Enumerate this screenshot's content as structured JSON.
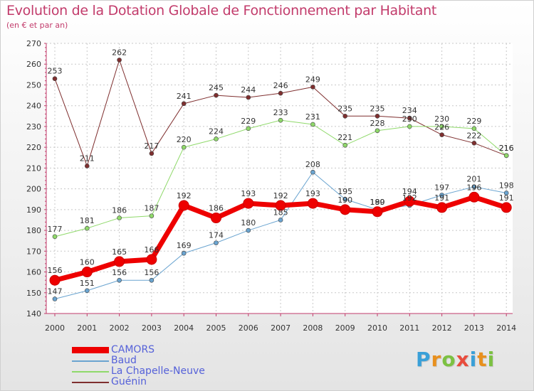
{
  "header": {
    "title": "Evolution de la Dotation Globale de Fonctionnement par Habitant",
    "subtitle": "(en € et par an)"
  },
  "brand": {
    "text": "Proxiti",
    "colors": [
      "#3aa0d8",
      "#e8901e",
      "#7cc142",
      "#e84c3d",
      "#3aa0d8",
      "#e8901e",
      "#7cc142"
    ]
  },
  "chart_data": {
    "type": "line",
    "x": [
      "2000",
      "2001",
      "2002",
      "2003",
      "2004",
      "2005",
      "2006",
      "2007",
      "2008",
      "2009",
      "2010",
      "2011",
      "2012",
      "2013",
      "2014"
    ],
    "ylim": [
      140,
      270
    ],
    "yticks": [
      140,
      150,
      160,
      170,
      180,
      190,
      200,
      210,
      220,
      230,
      240,
      250,
      260,
      270
    ],
    "grid": true,
    "legend_placement": "bottom-left",
    "series": [
      {
        "name": "Guénin",
        "color": "#7f2f2f",
        "width": 1,
        "marker": 3,
        "values": [
          253,
          211,
          262,
          217,
          241,
          245,
          244,
          246,
          249,
          235,
          235,
          234,
          226,
          222,
          216
        ],
        "labels": [
          "253",
          "211",
          "262",
          "217",
          "241",
          "245",
          "244",
          "246",
          "249",
          "235",
          "235",
          "234",
          "226",
          "222",
          "216"
        ]
      },
      {
        "name": "La Chapelle-Neuve",
        "color": "#8fd96a",
        "width": 1,
        "marker": 3,
        "values": [
          177,
          181,
          186,
          187,
          220,
          224,
          229,
          233,
          231,
          221,
          228,
          230,
          230,
          229,
          216
        ],
        "labels": [
          "177",
          "181",
          "186",
          "187",
          "220",
          "224",
          "229",
          "233",
          "231",
          "221",
          "228",
          "230",
          "230",
          "229",
          "216"
        ]
      },
      {
        "name": "Baud",
        "color": "#6aa4d0",
        "width": 1,
        "marker": 3,
        "values": [
          147,
          151,
          156,
          156,
          169,
          174,
          180,
          185,
          208,
          195,
          190,
          192,
          197,
          201,
          198
        ],
        "labels": [
          "147",
          "151",
          "156",
          "156",
          "169",
          "174",
          "180",
          "185",
          "208",
          "195",
          "190",
          "192",
          "197",
          "201",
          "198"
        ]
      },
      {
        "name": "CAMORS",
        "color": "#ee0000",
        "width": 7,
        "marker": 7,
        "values": [
          156,
          160,
          165,
          166,
          192,
          186,
          193,
          192,
          193,
          190,
          189,
          194,
          191,
          196,
          191
        ],
        "labels": [
          "156",
          "160",
          "165",
          "166",
          "192",
          "186",
          "193",
          "192",
          "193",
          "190",
          "189",
          "194",
          "191",
          "196",
          "191"
        ]
      }
    ],
    "legend_order": [
      "CAMORS",
      "Baud",
      "La Chapelle-Neuve",
      "Guénin"
    ]
  }
}
